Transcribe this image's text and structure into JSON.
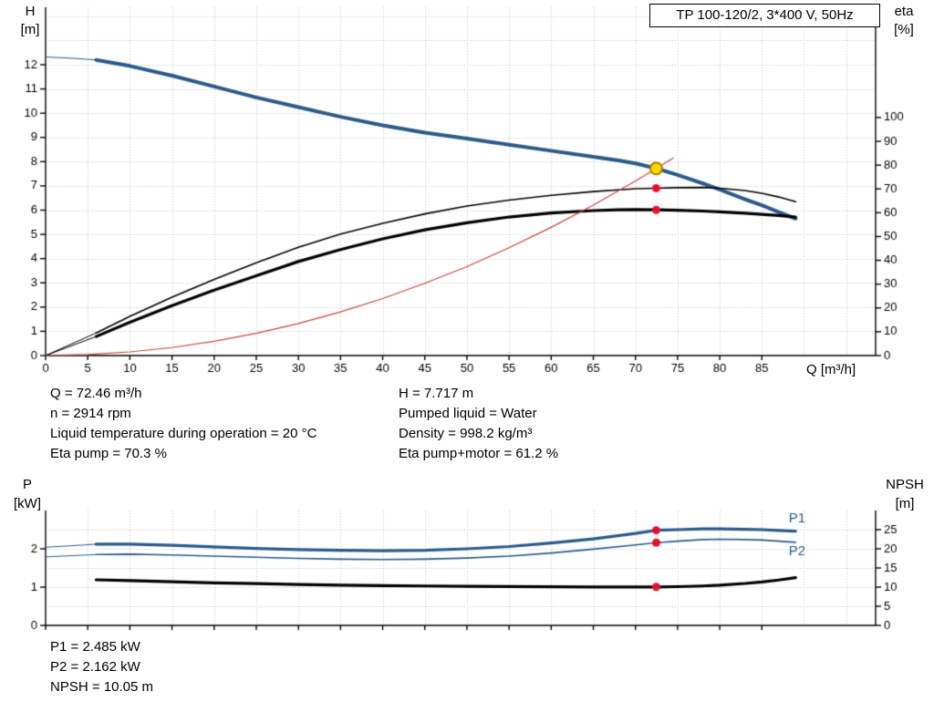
{
  "info": {
    "left": [
      "Q = 72.46 m³/h",
      "n = 2914 rpm",
      "Liquid temperature during operation = 20 °C",
      "Eta pump = 70.3 %"
    ],
    "right": [
      "H = 7.717 m",
      "Pumped liquid = Water",
      "Density = 998.2 kg/m³",
      "Eta pump+motor = 61.2 %"
    ]
  },
  "results": [
    "P1 = 2.485 kW",
    "P2 = 2.162 kW",
    "NPSH = 10.05 m"
  ],
  "colors": {
    "curve_blue": "#2a5a8a",
    "curve_red": "#cc4437",
    "dot_red": "#e8112d",
    "duty_yellow": "#ffd800",
    "duty_ring": "#b97a00",
    "grid": "#c3c3c3",
    "axis": "#000000"
  },
  "chart_data": [
    {
      "type": "line",
      "title": "TP 100-120/2, 3*400 V, 50Hz",
      "x_axis": {
        "label": "Q [m³/h]",
        "min": 0,
        "max": 98.5,
        "ticks": [
          0,
          5,
          10,
          15,
          20,
          25,
          30,
          35,
          40,
          45,
          50,
          55,
          60,
          65,
          70,
          75,
          80,
          85
        ],
        "grid": [
          5,
          10,
          15,
          20,
          25,
          30,
          35,
          40,
          45,
          50,
          55,
          60,
          65,
          70,
          75,
          80,
          85,
          90,
          95
        ]
      },
      "y_left": {
        "label": "H",
        "unit": "[m]",
        "min": 0,
        "max": 14.37,
        "ticks": [
          0,
          1,
          2,
          3,
          4,
          5,
          6,
          7,
          8,
          9,
          10,
          11,
          12
        ]
      },
      "y_right": {
        "label": "eta",
        "unit": "[%]",
        "min": 0,
        "max": 146.3,
        "ticks": [
          0,
          10,
          20,
          30,
          40,
          50,
          60,
          70,
          80,
          90,
          100
        ]
      },
      "y_grid": {
        "axis": "left",
        "values": [
          1,
          2,
          3,
          4,
          5,
          6,
          7,
          8,
          9,
          10,
          11,
          12,
          13,
          14
        ]
      },
      "series": [
        {
          "name": "QH-curve",
          "axis": "left",
          "color": "#2a5a8a",
          "width": 4,
          "thin_until": 6,
          "points": [
            [
              0,
              12.32
            ],
            [
              3,
              12.27
            ],
            [
              6,
              12.2
            ],
            [
              10,
              11.95
            ],
            [
              15,
              11.55
            ],
            [
              20,
              11.1
            ],
            [
              25,
              10.65
            ],
            [
              30,
              10.25
            ],
            [
              35,
              9.85
            ],
            [
              40,
              9.5
            ],
            [
              45,
              9.2
            ],
            [
              50,
              8.95
            ],
            [
              55,
              8.7
            ],
            [
              60,
              8.45
            ],
            [
              65,
              8.2
            ],
            [
              68,
              8.05
            ],
            [
              70,
              7.93
            ],
            [
              72.46,
              7.72
            ],
            [
              75,
              7.45
            ],
            [
              78,
              7.1
            ],
            [
              80,
              6.85
            ],
            [
              83,
              6.45
            ],
            [
              85,
              6.2
            ],
            [
              87,
              5.92
            ],
            [
              89,
              5.65
            ]
          ]
        },
        {
          "name": "eta-pump",
          "axis": "right",
          "color": "#000000",
          "width": 1.6,
          "thin_until": 6,
          "points": [
            [
              0,
              0
            ],
            [
              6,
              9.5
            ],
            [
              10,
              16.5
            ],
            [
              15,
              24.5
            ],
            [
              20,
              32
            ],
            [
              25,
              39
            ],
            [
              30,
              45.5
            ],
            [
              35,
              51
            ],
            [
              40,
              55.5
            ],
            [
              45,
              59.5
            ],
            [
              50,
              62.8
            ],
            [
              55,
              65.3
            ],
            [
              60,
              67.3
            ],
            [
              65,
              68.9
            ],
            [
              70,
              70.1
            ],
            [
              72.46,
              70.3
            ],
            [
              75,
              70.5
            ],
            [
              78,
              70.6
            ],
            [
              80,
              70.3
            ],
            [
              83,
              69.3
            ],
            [
              85,
              68.2
            ],
            [
              87,
              66.6
            ],
            [
              89,
              64.6
            ]
          ]
        },
        {
          "name": "eta-pump-motor",
          "axis": "right",
          "color": "#000000",
          "width": 3.2,
          "thin_until": 6,
          "points": [
            [
              0,
              0
            ],
            [
              6,
              8
            ],
            [
              10,
              14
            ],
            [
              15,
              21
            ],
            [
              20,
              27.5
            ],
            [
              25,
              33.5
            ],
            [
              30,
              39.5
            ],
            [
              35,
              44.5
            ],
            [
              40,
              49
            ],
            [
              45,
              52.8
            ],
            [
              50,
              55.8
            ],
            [
              55,
              58.2
            ],
            [
              60,
              59.9
            ],
            [
              65,
              60.9
            ],
            [
              68,
              61.2
            ],
            [
              70,
              61.3
            ],
            [
              72.46,
              61.2
            ],
            [
              75,
              61
            ],
            [
              78,
              60.7
            ],
            [
              80,
              60.4
            ],
            [
              83,
              59.8
            ],
            [
              85,
              59.3
            ],
            [
              87,
              58.8
            ],
            [
              89,
              58.2
            ]
          ]
        },
        {
          "name": "system-curve",
          "axis": "left",
          "color": "#cc4437",
          "width": 1.2,
          "points": [
            [
              0,
              0
            ],
            [
              5,
              0.04
            ],
            [
              10,
              0.15
            ],
            [
              15,
              0.33
            ],
            [
              20,
              0.59
            ],
            [
              25,
              0.92
            ],
            [
              30,
              1.32
            ],
            [
              35,
              1.8
            ],
            [
              40,
              2.35
            ],
            [
              45,
              2.98
            ],
            [
              50,
              3.67
            ],
            [
              55,
              4.45
            ],
            [
              60,
              5.29
            ],
            [
              65,
              6.21
            ],
            [
              70,
              7.2
            ],
            [
              72.46,
              7.72
            ],
            [
              74.5,
              8.15
            ]
          ]
        }
      ],
      "markers": [
        {
          "x": 72.46,
          "y": 7.72,
          "axis": "left",
          "style": "duty"
        },
        {
          "x": 72.46,
          "y": 70.3,
          "axis": "right",
          "style": "dot"
        },
        {
          "x": 72.46,
          "y": 61.2,
          "axis": "right",
          "style": "dot"
        }
      ],
      "annotations": []
    },
    {
      "type": "line",
      "title": "",
      "x_axis": {
        "label": "",
        "min": 0,
        "max": 98.5,
        "ticks": [
          0,
          5,
          10,
          15,
          20,
          25,
          30,
          35,
          40,
          45,
          50,
          55,
          60,
          65,
          70,
          75,
          80,
          85
        ],
        "grid": [
          5,
          10,
          15,
          20,
          25,
          30,
          35,
          40,
          45,
          50,
          55,
          60,
          65,
          70,
          75,
          80,
          85,
          90,
          95
        ]
      },
      "y_left": {
        "label": "P",
        "unit": "[kW]",
        "min": 0,
        "max": 3.0,
        "ticks": [
          0,
          1,
          2
        ]
      },
      "y_right": {
        "label": "NPSH",
        "unit": "[m]",
        "min": 0,
        "max": 30,
        "ticks": [
          0,
          5,
          10,
          15,
          20,
          25
        ]
      },
      "y_grid": {
        "axis": "right",
        "values": [
          5,
          10,
          15,
          20,
          25
        ]
      },
      "series": [
        {
          "name": "P1-curve",
          "axis": "left",
          "color": "#2a5a8a",
          "width": 3.2,
          "thin_until": 6,
          "points": [
            [
              0,
              2.04
            ],
            [
              6,
              2.12
            ],
            [
              10,
              2.12
            ],
            [
              15,
              2.09
            ],
            [
              20,
              2.05
            ],
            [
              25,
              2.01
            ],
            [
              30,
              1.98
            ],
            [
              35,
              1.96
            ],
            [
              40,
              1.95
            ],
            [
              45,
              1.96
            ],
            [
              50,
              2.0
            ],
            [
              55,
              2.06
            ],
            [
              60,
              2.15
            ],
            [
              65,
              2.26
            ],
            [
              70,
              2.4
            ],
            [
              72.46,
              2.485
            ],
            [
              75,
              2.5
            ],
            [
              78,
              2.52
            ],
            [
              80,
              2.52
            ],
            [
              83,
              2.51
            ],
            [
              85,
              2.5
            ],
            [
              87,
              2.48
            ],
            [
              89,
              2.46
            ]
          ]
        },
        {
          "name": "P2-curve",
          "axis": "left",
          "color": "#2a5a8a",
          "width": 1.6,
          "thin_until": 6,
          "points": [
            [
              0,
              1.79
            ],
            [
              6,
              1.85
            ],
            [
              10,
              1.86
            ],
            [
              15,
              1.84
            ],
            [
              20,
              1.81
            ],
            [
              25,
              1.78
            ],
            [
              30,
              1.75
            ],
            [
              35,
              1.73
            ],
            [
              40,
              1.72
            ],
            [
              45,
              1.73
            ],
            [
              50,
              1.76
            ],
            [
              55,
              1.81
            ],
            [
              60,
              1.89
            ],
            [
              65,
              1.99
            ],
            [
              70,
              2.1
            ],
            [
              72.46,
              2.162
            ],
            [
              75,
              2.2
            ],
            [
              78,
              2.24
            ],
            [
              80,
              2.25
            ],
            [
              83,
              2.24
            ],
            [
              85,
              2.23
            ],
            [
              87,
              2.2
            ],
            [
              89,
              2.17
            ]
          ]
        },
        {
          "name": "NPSH-curve",
          "axis": "right",
          "color": "#000000",
          "width": 3.2,
          "points": [
            [
              6,
              11.9
            ],
            [
              10,
              11.7
            ],
            [
              15,
              11.4
            ],
            [
              20,
              11.1
            ],
            [
              25,
              10.9
            ],
            [
              30,
              10.7
            ],
            [
              35,
              10.5
            ],
            [
              40,
              10.4
            ],
            [
              45,
              10.3
            ],
            [
              50,
              10.2
            ],
            [
              55,
              10.15
            ],
            [
              60,
              10.1
            ],
            [
              65,
              10.05
            ],
            [
              70,
              10.04
            ],
            [
              72.46,
              10.05
            ],
            [
              75,
              10.12
            ],
            [
              78,
              10.3
            ],
            [
              80,
              10.5
            ],
            [
              83,
              10.95
            ],
            [
              85,
              11.35
            ],
            [
              87,
              11.85
            ],
            [
              89,
              12.45
            ]
          ]
        }
      ],
      "markers": [
        {
          "x": 72.46,
          "y": 2.485,
          "axis": "left",
          "style": "dot"
        },
        {
          "x": 72.46,
          "y": 2.162,
          "axis": "left",
          "style": "dot"
        },
        {
          "x": 72.46,
          "y": 10.05,
          "axis": "right",
          "style": "dot"
        }
      ],
      "annotations": [
        {
          "text": "P1",
          "x": 88.2,
          "y": 2.78,
          "axis": "left",
          "color": "#2a5a8a"
        },
        {
          "text": "P2",
          "x": 88.2,
          "y": 1.93,
          "axis": "left",
          "color": "#2a5a8a"
        }
      ]
    }
  ]
}
